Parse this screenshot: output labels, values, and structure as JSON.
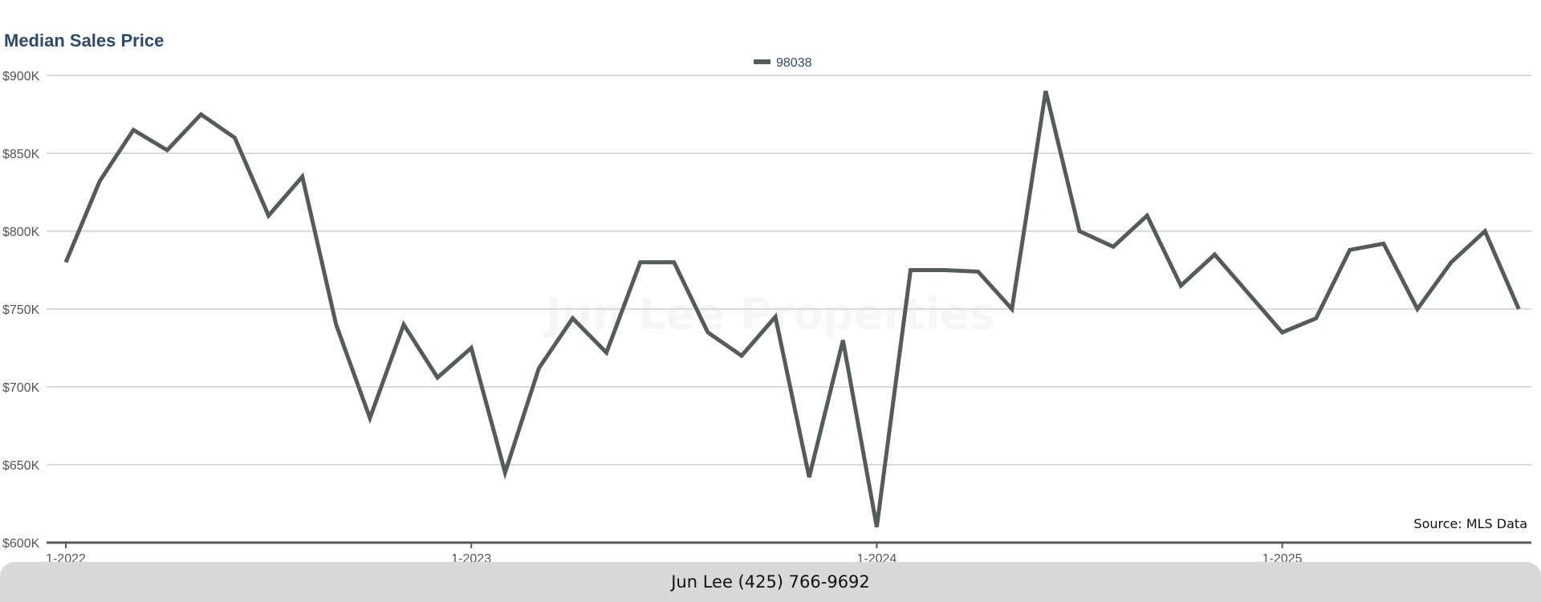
{
  "chart_data": {
    "type": "line",
    "title": "Median Sales Price",
    "legend": "top-center",
    "grid": true,
    "ylim": [
      600000,
      900000
    ],
    "yticks": [
      {
        "value": 900000,
        "label": "$900K"
      },
      {
        "value": 850000,
        "label": "$850K"
      },
      {
        "value": 800000,
        "label": "$800K"
      },
      {
        "value": 750000,
        "label": "$750K"
      },
      {
        "value": 700000,
        "label": "$700K"
      },
      {
        "value": 650000,
        "label": "$650K"
      },
      {
        "value": 600000,
        "label": "$600K"
      }
    ],
    "xticks": [
      {
        "month": "2022-01",
        "label": "1-2022"
      },
      {
        "month": "2023-01",
        "label": "1-2023"
      },
      {
        "month": "2024-01",
        "label": "1-2024"
      },
      {
        "month": "2025-01",
        "label": "1-2025"
      }
    ],
    "x": [
      "2022-01",
      "2022-02",
      "2022-03",
      "2022-04",
      "2022-05",
      "2022-06",
      "2022-07",
      "2022-08",
      "2022-09",
      "2022-10",
      "2022-11",
      "2022-12",
      "2023-01",
      "2023-02",
      "2023-03",
      "2023-04",
      "2023-05",
      "2023-06",
      "2023-07",
      "2023-08",
      "2023-09",
      "2023-10",
      "2023-11",
      "2023-12",
      "2024-01",
      "2024-02",
      "2024-03",
      "2024-04",
      "2024-05",
      "2024-06",
      "2024-07",
      "2024-08",
      "2024-09",
      "2024-10",
      "2024-11",
      "2024-12",
      "2025-01",
      "2025-02",
      "2025-03",
      "2025-04",
      "2025-05",
      "2025-06",
      "2025-07",
      "2025-08"
    ],
    "series": [
      {
        "name": "98038",
        "color": "#555b5a",
        "values": [
          780000,
          832000,
          865000,
          852000,
          875000,
          860000,
          810000,
          835000,
          740000,
          680000,
          740000,
          706000,
          725000,
          645000,
          712000,
          744000,
          722000,
          780000,
          780000,
          735000,
          720000,
          745000,
          642000,
          730000,
          610000,
          775000,
          775000,
          774000,
          750000,
          890000,
          800000,
          790000,
          810000,
          765000,
          785000,
          760000,
          735000,
          744000,
          788000,
          792000,
          750000,
          780000,
          800000,
          750000
        ]
      }
    ],
    "annotations": {
      "source": "Source: MLS Data"
    }
  },
  "watermark": "Jun Lee Properties",
  "footer": {
    "contact": "Jun Lee (425) 766-9692"
  },
  "colors": {
    "title": "#2c4a6b",
    "gridline": "#cfcfcf",
    "axis": "#555b5a",
    "footer_bg": "#d9d9d9"
  }
}
